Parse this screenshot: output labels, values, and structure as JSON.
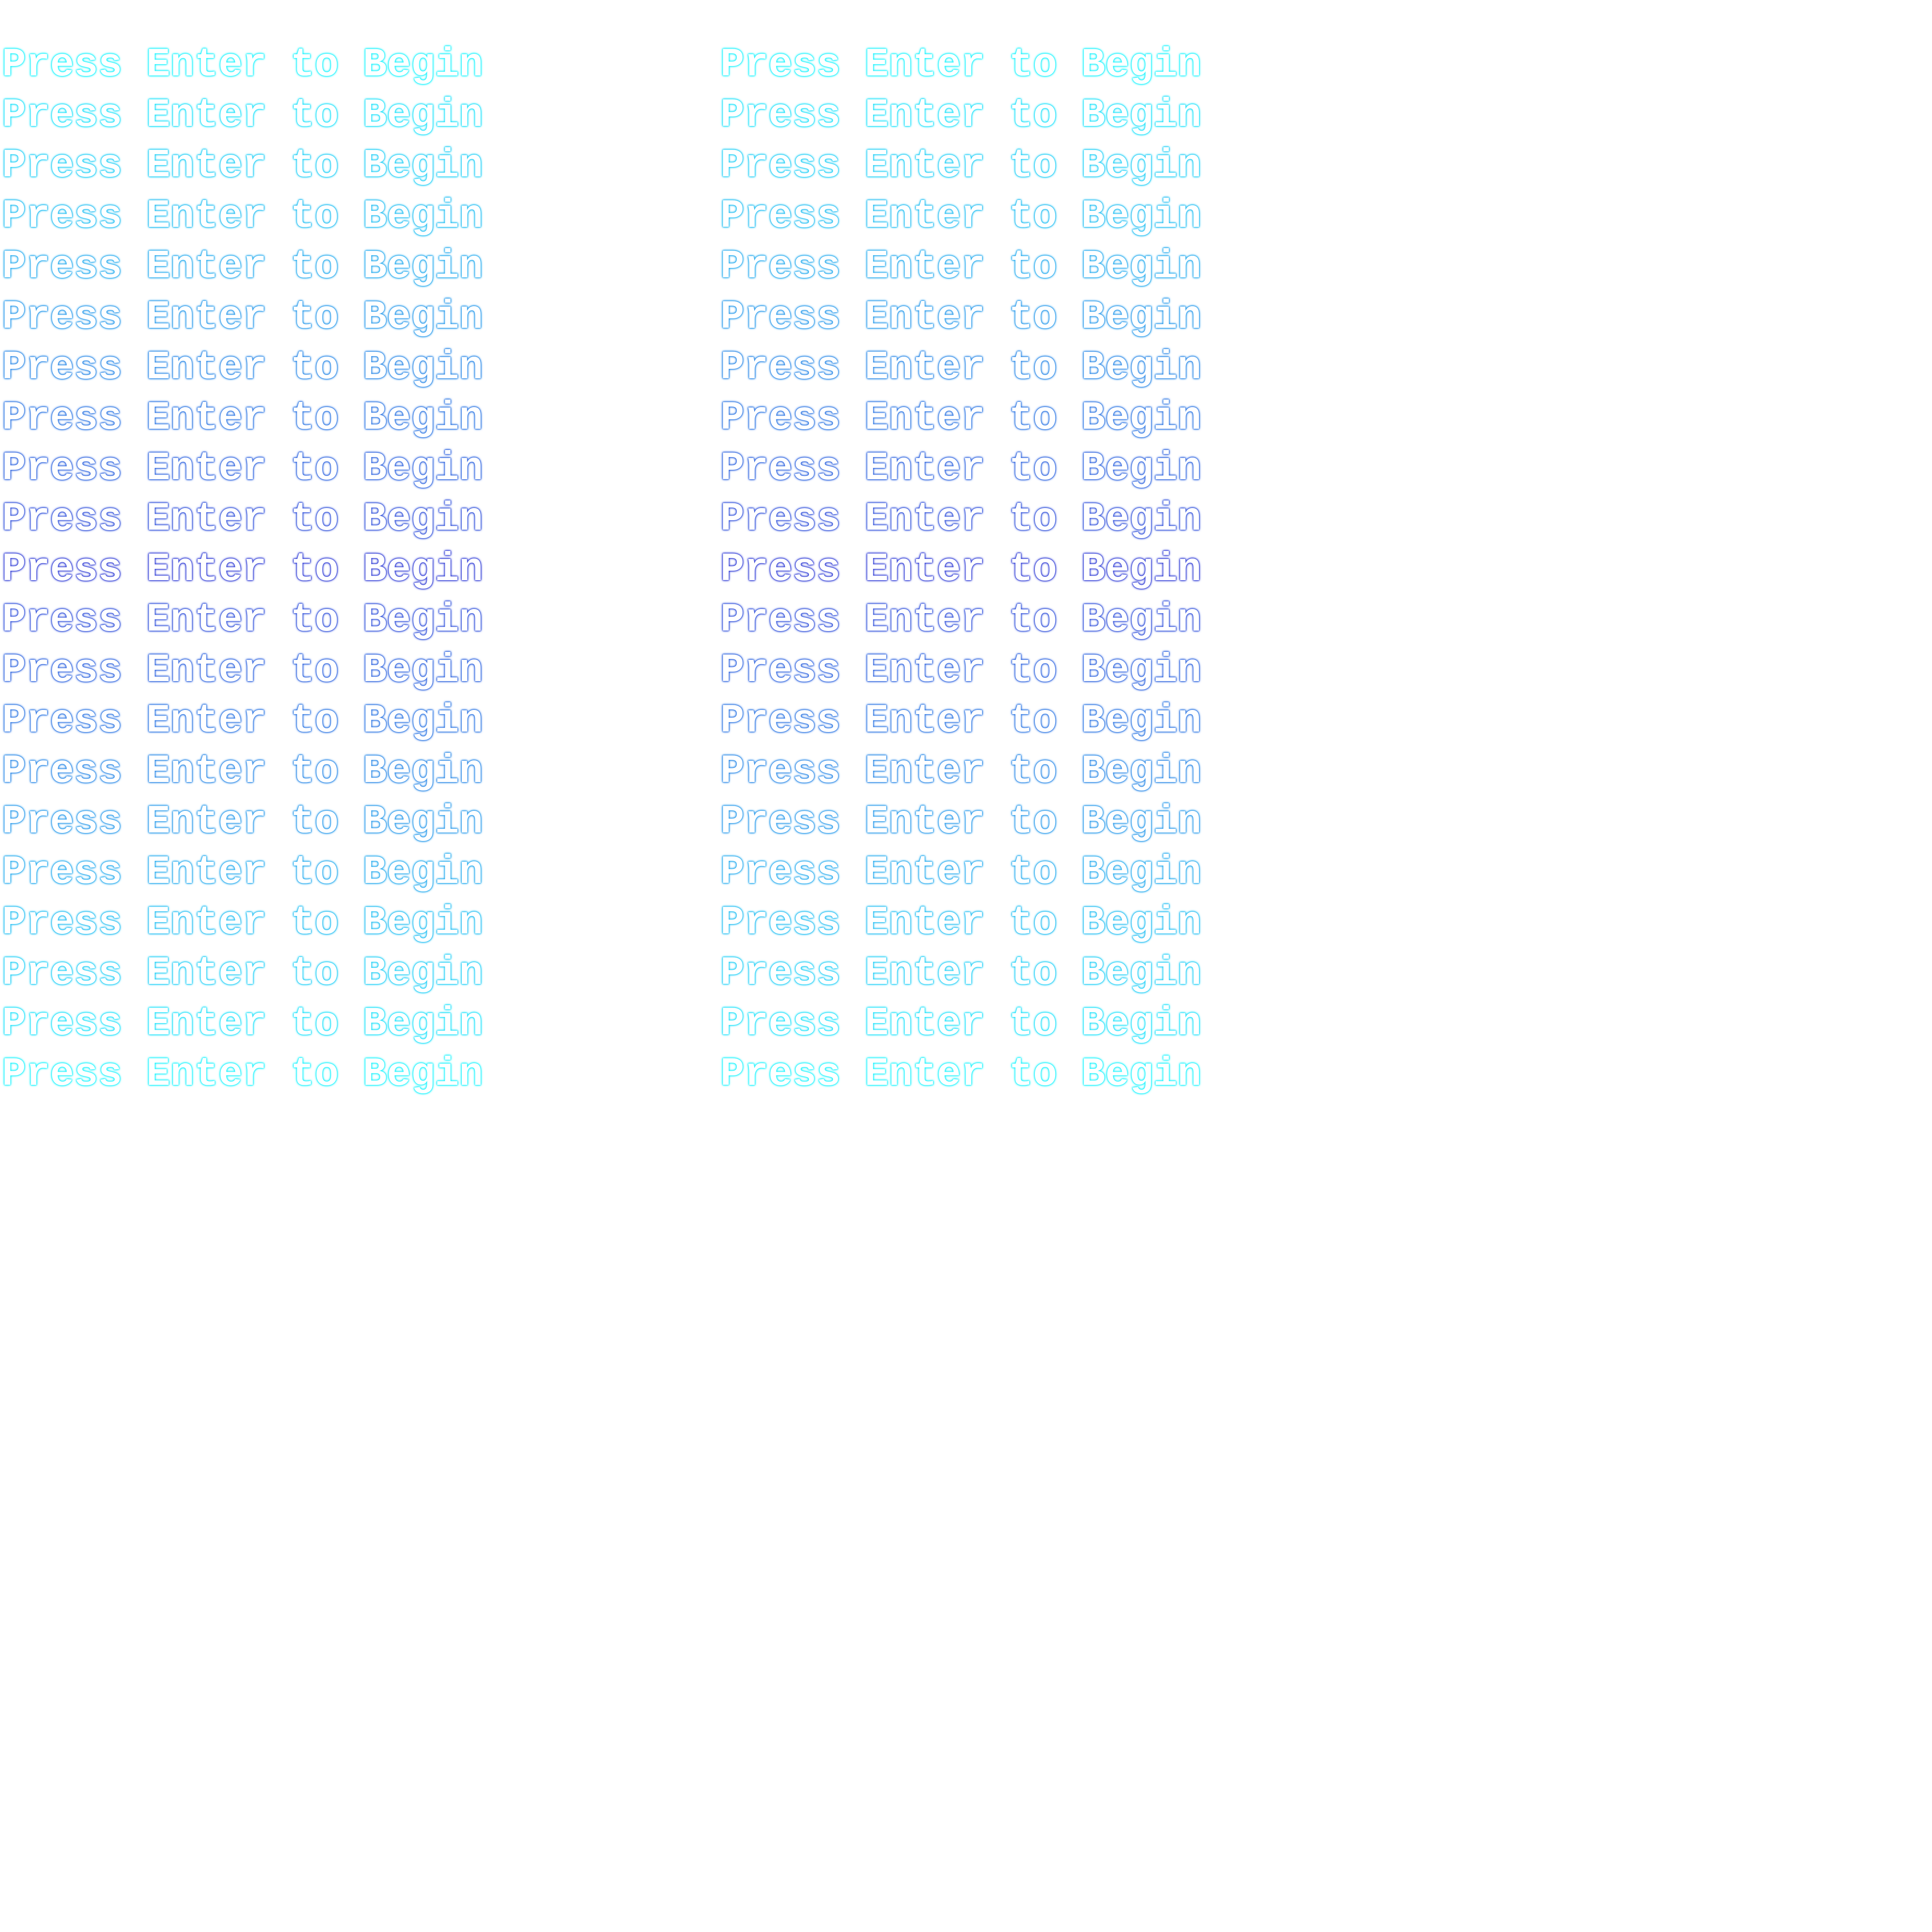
{
  "screen": {
    "prompt_text": "Press Enter to Begin",
    "row_count": 21,
    "columns": [
      "left",
      "right"
    ],
    "colors": {
      "background": "#ffffff",
      "text_fill": "#ffffff",
      "glow_edge": "#22f4ff",
      "glow_center": "#3a46d8"
    }
  }
}
